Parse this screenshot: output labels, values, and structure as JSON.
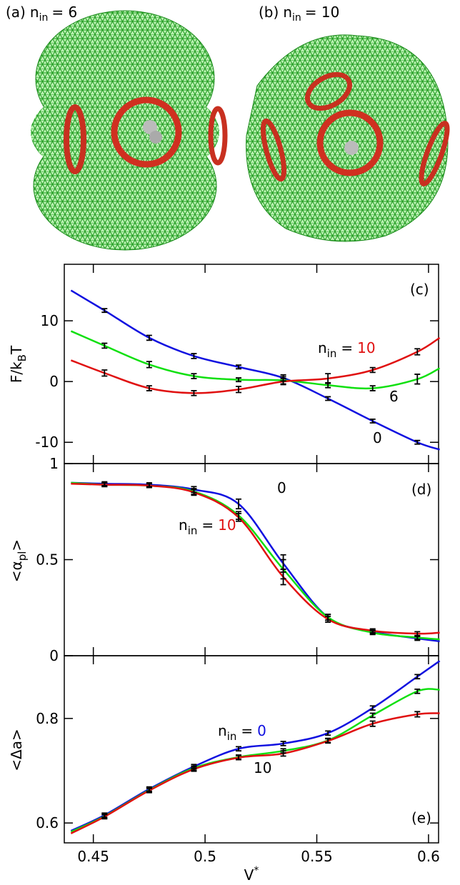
{
  "images": [
    {
      "label": "(a)",
      "n": "n",
      "sub": "in",
      "eq": "= 6"
    },
    {
      "label": "(b)",
      "n": "n",
      "sub": "in",
      "eq": "= 10"
    }
  ],
  "chart_data": [
    {
      "type": "line",
      "panel": "(c)",
      "ylabel": {
        "text": "F/k",
        "sub": "B",
        "after": "T"
      },
      "xlim": [
        0.437,
        0.6045
      ],
      "ylim": [
        -13.5,
        19.3
      ],
      "yticks": [
        -10,
        0,
        10
      ],
      "x": [
        0.44,
        0.455,
        0.475,
        0.495,
        0.515,
        0.535,
        0.555,
        0.575,
        0.595,
        0.605
      ],
      "note": {
        "n": "n",
        "sub": "in",
        "eq": "="
      },
      "series": [
        {
          "name": "0",
          "color": "#1010e0",
          "values": [
            15,
            11.7,
            7.2,
            4.2,
            2.4,
            0.6,
            -2.8,
            -6.5,
            -10,
            -11.2
          ],
          "errors": [
            null,
            0.3,
            0.4,
            0.4,
            0.3,
            0.5,
            0.3,
            0.3,
            0.3,
            null
          ]
        },
        {
          "name": "6",
          "color": "#10e010",
          "values": [
            8.3,
            5.9,
            2.8,
            0.9,
            0.3,
            0.2,
            -0.6,
            -1.1,
            0.4,
            2.2
          ],
          "errors": [
            null,
            0.4,
            0.5,
            0.4,
            0.3,
            0.6,
            0.4,
            0.4,
            0.8,
            null
          ]
        },
        {
          "name": "10",
          "color": "#e01010",
          "values": [
            3.5,
            1.4,
            -1.1,
            -1.9,
            -1.3,
            0,
            0.5,
            1.9,
            4.9,
            7.2
          ],
          "errors": [
            null,
            0.5,
            0.4,
            0.4,
            0.5,
            0.5,
            0.8,
            0.4,
            0.5,
            null
          ]
        }
      ]
    },
    {
      "type": "line",
      "panel": "(d)",
      "ylabel": {
        "text": "<α",
        "sub": "pl",
        "after": ">"
      },
      "xlim": [
        0.437,
        0.6045
      ],
      "ylim": [
        0,
        1
      ],
      "yticks": [
        0,
        0.5,
        1
      ],
      "x": [
        0.44,
        0.455,
        0.475,
        0.495,
        0.515,
        0.535,
        0.555,
        0.575,
        0.595,
        0.605
      ],
      "note": {
        "n": "n",
        "sub": "in",
        "eq": "="
      },
      "series": [
        {
          "name": "0",
          "color": "#1010e0",
          "values": [
            0.9,
            0.895,
            0.89,
            0.865,
            0.79,
            0.48,
            0.2,
            0.125,
            0.09,
            0.075
          ],
          "errors": [
            null,
            0.01,
            0.01,
            0.015,
            0.025,
            0.045,
            0.015,
            0.01,
            0.01,
            null
          ]
        },
        {
          "color": "#10e010",
          "values": [
            0.9,
            0.89,
            0.885,
            0.855,
            0.73,
            0.45,
            0.2,
            0.12,
            0.095,
            0.085
          ],
          "errors": [
            null,
            0.01,
            0.01,
            0.015,
            0.02,
            0.05,
            0.015,
            0.01,
            0.01,
            null
          ]
        },
        {
          "name": "10",
          "color": "#e01010",
          "values": [
            0.895,
            0.89,
            0.885,
            0.85,
            0.72,
            0.41,
            0.19,
            0.13,
            0.115,
            0.12
          ],
          "errors": [
            null,
            0.01,
            0.01,
            0.015,
            0.02,
            0.04,
            0.015,
            0.01,
            0.01,
            null
          ]
        }
      ]
    },
    {
      "type": "line",
      "panel": "(e)",
      "ylabel": {
        "text": "<Δa>"
      },
      "xlabel": {
        "text": "V",
        "sup": "*"
      },
      "xlim": [
        0.437,
        0.6045
      ],
      "ylim": [
        0.562,
        0.92
      ],
      "yticks": [
        0.6,
        0.8
      ],
      "xticks": [
        0.45,
        0.5,
        0.55,
        0.6
      ],
      "x": [
        0.44,
        0.455,
        0.475,
        0.495,
        0.515,
        0.535,
        0.555,
        0.575,
        0.595,
        0.605
      ],
      "note": {
        "n": "n",
        "sub": "in",
        "eq": "="
      },
      "series": [
        {
          "name": "0",
          "color": "#1010e0",
          "values": [
            0.585,
            0.615,
            0.665,
            0.708,
            0.742,
            0.752,
            0.772,
            0.82,
            0.88,
            0.91
          ],
          "errors": [
            null,
            0.004,
            0.004,
            0.004,
            0.004,
            0.004,
            0.004,
            0.004,
            0.004,
            null
          ]
        },
        {
          "color": "#10e010",
          "values": [
            0.583,
            0.613,
            0.663,
            0.705,
            0.726,
            0.738,
            0.758,
            0.806,
            0.852,
            0.855
          ],
          "errors": [
            null,
            0.004,
            0.004,
            0.004,
            0.004,
            0.004,
            0.004,
            0.004,
            0.004,
            null
          ]
        },
        {
          "name": "10",
          "color": "#e01010",
          "values": [
            0.58,
            0.612,
            0.662,
            0.703,
            0.725,
            0.733,
            0.757,
            0.79,
            0.808,
            0.81
          ],
          "errors": [
            null,
            0.004,
            0.004,
            0.004,
            0.004,
            0.005,
            0.004,
            0.005,
            0.005,
            null
          ]
        }
      ]
    }
  ]
}
